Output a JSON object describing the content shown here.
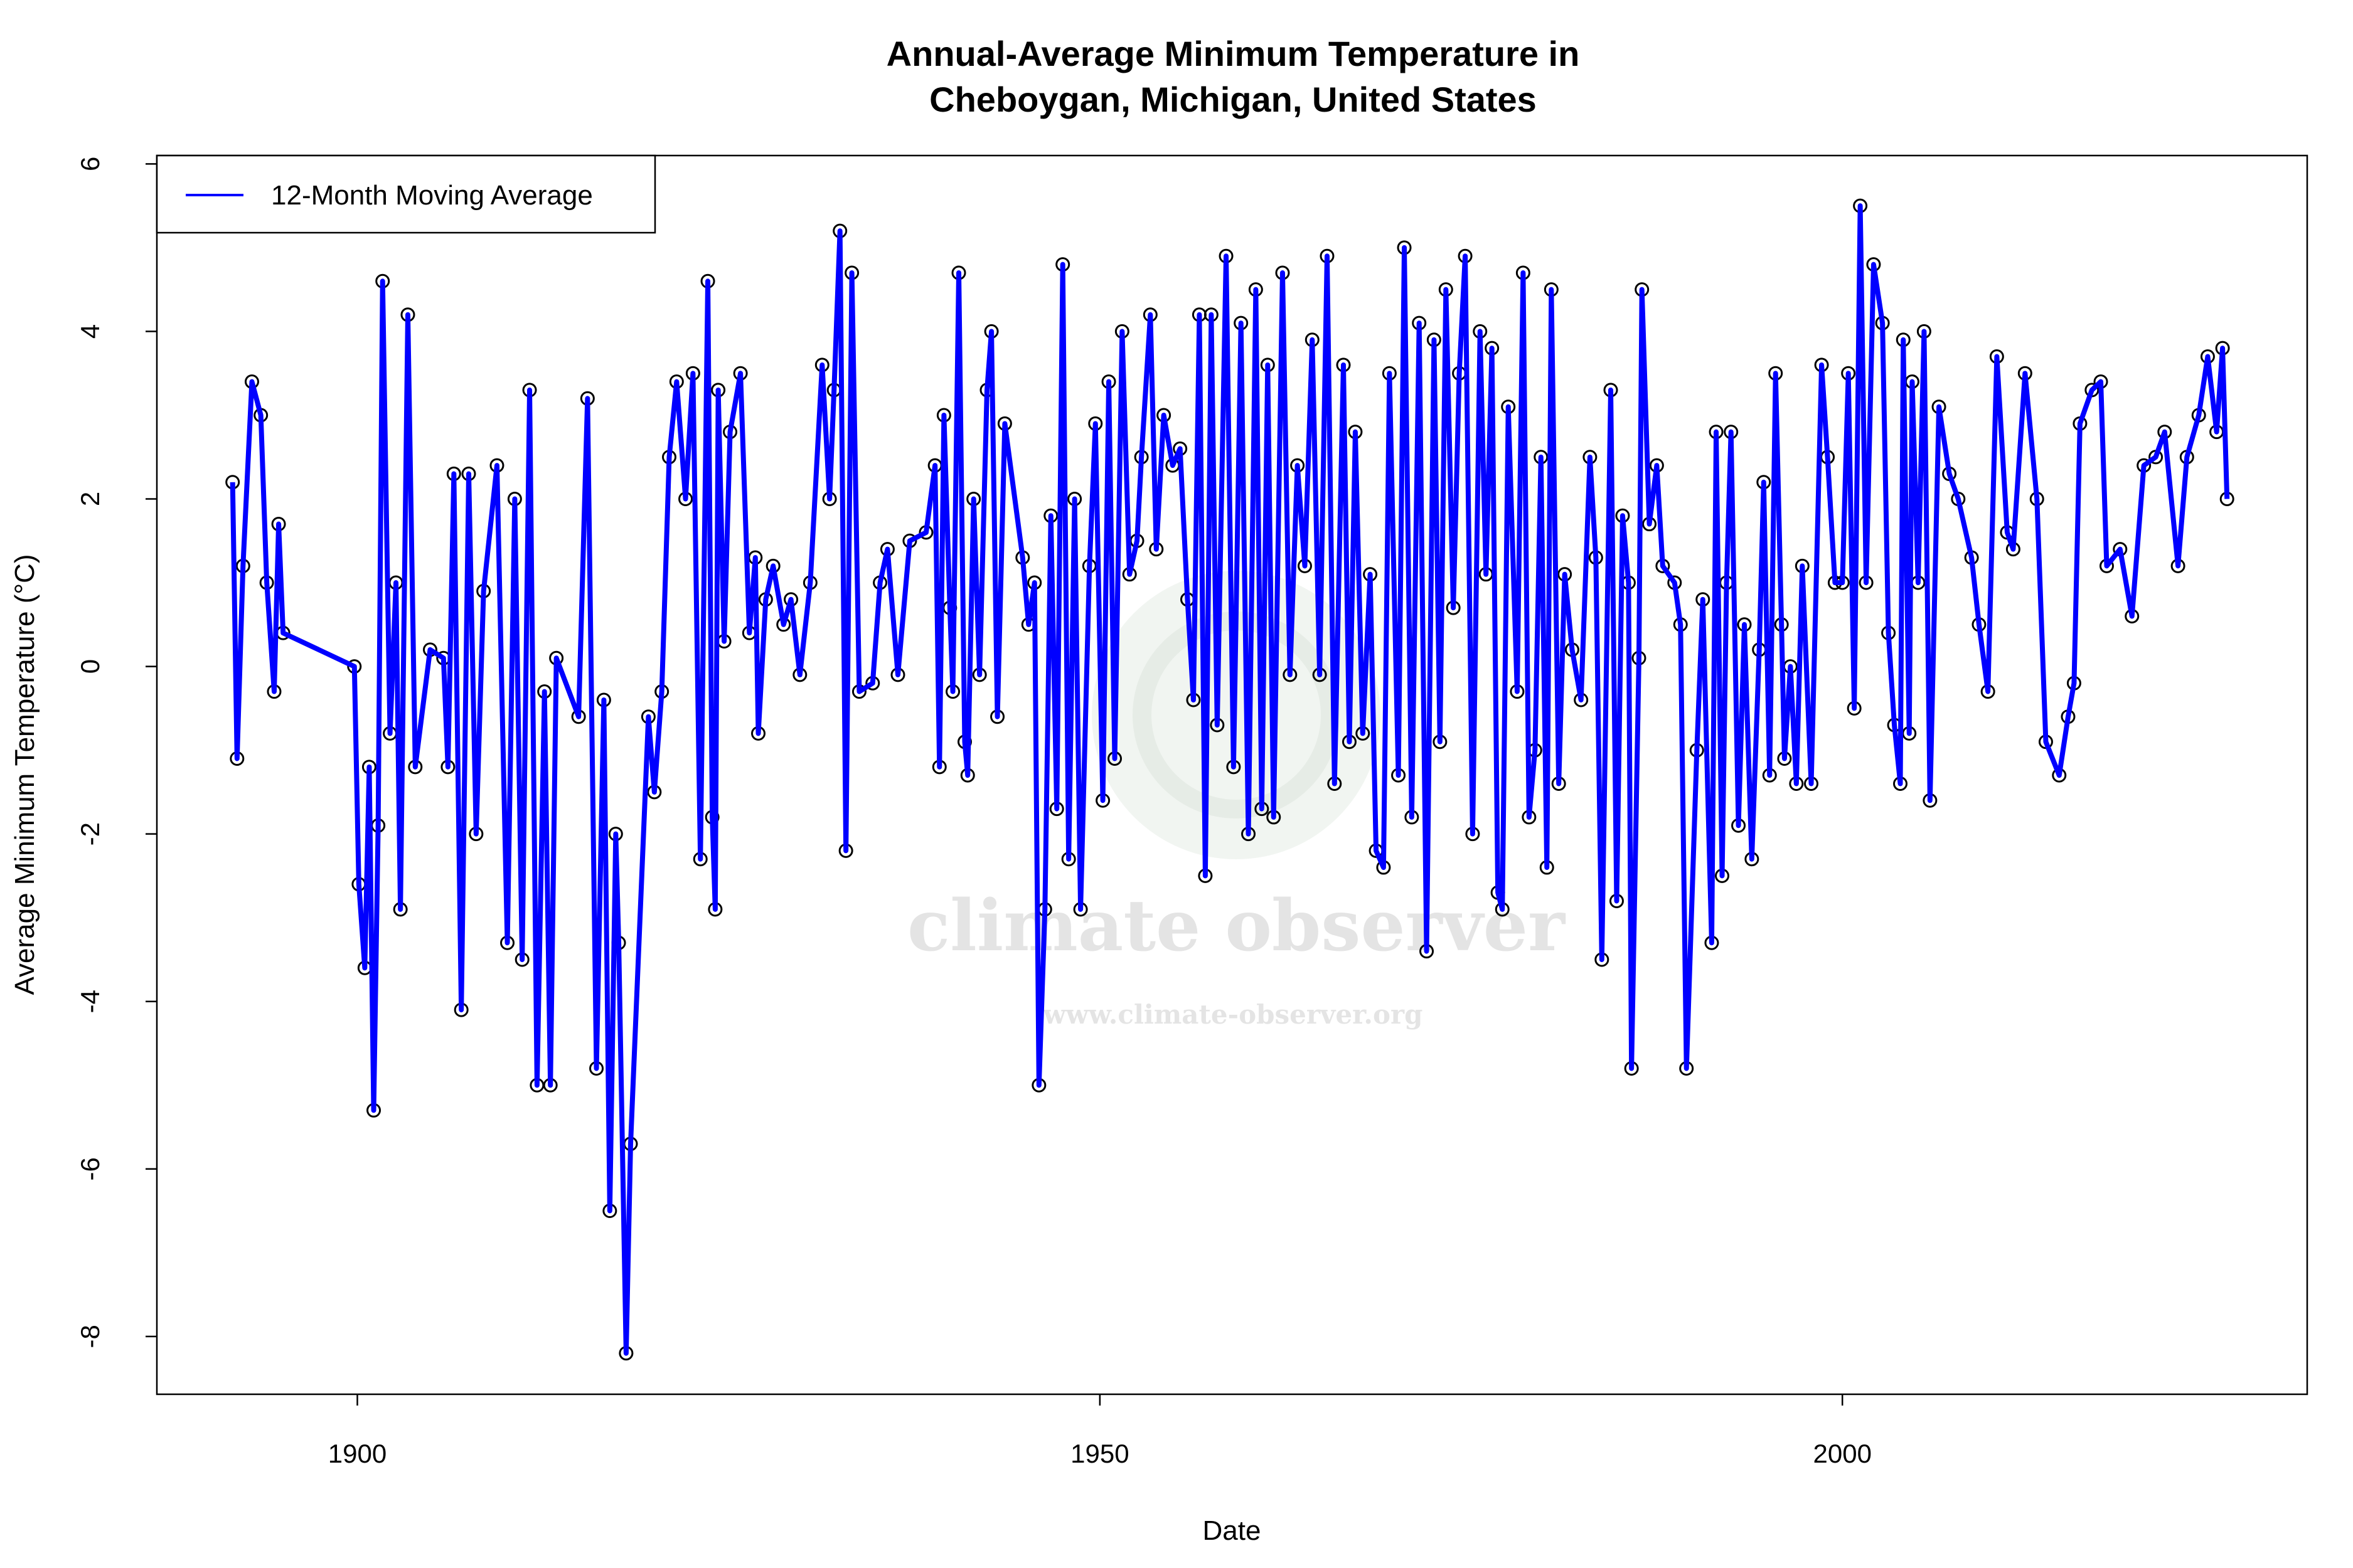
{
  "chart_data": {
    "type": "line",
    "title": "Annual-Average Minimum Temperature in\nCheboygan, Michigan, United States",
    "title_lines": [
      "Annual-Average Minimum Temperature in",
      "Cheboygan, Michigan, United States"
    ],
    "xlabel": "Date",
    "ylabel": "Average Minimum Temperature (°C)",
    "xlim": [
      1886.5,
      2031.3
    ],
    "ylim": [
      -8.69,
      6.1
    ],
    "x_ticks": [
      1900,
      1950,
      2000
    ],
    "x_tick_labels": [
      "1900",
      "1950",
      "2000"
    ],
    "y_ticks": [
      -8,
      -6,
      -4,
      -2,
      0,
      2,
      4,
      6
    ],
    "y_tick_labels": [
      "-8",
      "-6",
      "-4",
      "-2",
      "0",
      "2",
      "4",
      "6"
    ],
    "grid": false,
    "legend": {
      "position": "top-left",
      "entries": [
        "12-Month Moving Average"
      ]
    },
    "markers": "open circles",
    "series": [
      {
        "name": "12-Month Moving Average",
        "color": "#0000ff",
        "x": [
          1891.6,
          1891.9,
          1892.3,
          1892.9,
          1893.5,
          1893.9,
          1894.4,
          1894.7,
          1895.0,
          1899.8,
          1900.1,
          1900.5,
          1900.8,
          1901.1,
          1901.4,
          1901.7,
          1902.2,
          1902.6,
          1902.9,
          1903.4,
          1903.9,
          1904.9,
          1905.8,
          1906.1,
          1906.5,
          1907.0,
          1907.5,
          1908.0,
          1908.5,
          1909.4,
          1910.1,
          1910.6,
          1911.1,
          1911.6,
          1912.1,
          1912.6,
          1913.0,
          1913.4,
          1914.9,
          1915.5,
          1916.1,
          1916.6,
          1917.0,
          1917.4,
          1917.6,
          1918.1,
          1918.4,
          1919.6,
          1920.0,
          1920.5,
          1921.0,
          1921.5,
          1922.1,
          1922.6,
          1923.1,
          1923.6,
          1923.9,
          1924.1,
          1924.3,
          1924.7,
          1925.1,
          1925.8,
          1926.4,
          1926.8,
          1927.0,
          1927.5,
          1928.0,
          1928.7,
          1929.2,
          1929.8,
          1930.5,
          1931.3,
          1931.8,
          1932.1,
          1932.5,
          1932.9,
          1933.3,
          1933.8,
          1934.7,
          1935.2,
          1935.7,
          1936.4,
          1937.2,
          1938.3,
          1938.9,
          1939.2,
          1939.5,
          1939.9,
          1940.1,
          1940.5,
          1940.9,
          1941.1,
          1941.5,
          1941.9,
          1942.4,
          1942.7,
          1943.1,
          1943.6,
          1944.8,
          1945.2,
          1945.6,
          1945.9,
          1946.3,
          1946.7,
          1947.1,
          1947.5,
          1947.9,
          1948.3,
          1948.7,
          1949.3,
          1949.7,
          1950.2,
          1950.6,
          1951.0,
          1951.5,
          1952.0,
          1952.5,
          1952.8,
          1953.4,
          1953.8,
          1954.3,
          1954.9,
          1955.4,
          1955.9,
          1956.3,
          1956.7,
          1957.1,
          1957.5,
          1957.9,
          1958.5,
          1959.0,
          1959.5,
          1960.0,
          1960.5,
          1960.9,
          1961.3,
          1961.7,
          1962.3,
          1962.8,
          1963.3,
          1963.8,
          1964.3,
          1964.8,
          1965.3,
          1965.8,
          1966.4,
          1966.8,
          1967.2,
          1967.7,
          1968.2,
          1968.6,
          1969.1,
          1969.5,
          1970.1,
          1970.5,
          1971.0,
          1971.5,
          1972.0,
          1972.5,
          1972.9,
          1973.3,
          1973.8,
          1974.2,
          1974.6,
          1975.1,
          1975.6,
          1976.0,
          1976.4,
          1976.8,
          1977.1,
          1977.5,
          1978.1,
          1978.5,
          1978.9,
          1979.3,
          1979.7,
          1980.1,
          1980.4,
          1980.9,
          1981.3,
          1981.8,
          1982.4,
          1983.0,
          1983.4,
          1983.8,
          1984.4,
          1984.8,
          1985.2,
          1985.6,
          1985.8,
          1986.3,
          1986.5,
          1987.0,
          1987.5,
          1987.9,
          1988.7,
          1989.1,
          1989.5,
          1990.2,
          1990.6,
          1991.2,
          1991.5,
          1991.9,
          1992.2,
          1992.5,
          1993.0,
          1993.4,
          1993.9,
          1994.4,
          1994.7,
          1995.1,
          1995.5,
          1995.9,
          1996.1,
          1996.5,
          1996.9,
          1997.3,
          1997.9,
          1998.6,
          1999.0,
          1999.5,
          2000.0,
          2000.4,
          2000.8,
          2001.2,
          2001.6,
          2002.1,
          2002.7,
          2003.1,
          2003.5,
          2003.9,
          2004.1,
          2004.5,
          2004.7,
          2005.1,
          2005.5,
          2005.9,
          2006.5,
          2007.2,
          2007.8,
          2008.7,
          2009.2,
          2009.8,
          2010.4,
          2011.1,
          2011.5,
          2012.3,
          2013.1,
          2013.7,
          2014.6,
          2015.2,
          2015.6,
          2016.0,
          2016.8,
          2017.4,
          2017.8,
          2018.7,
          2019.5,
          2020.3,
          2021.1,
          2021.7,
          2022.6,
          2023.2,
          2024.0,
          2024.6,
          2025.2,
          2025.6,
          2025.9
        ],
        "y": [
          2.2,
          -1.1,
          1.2,
          3.4,
          3.0,
          1.0,
          -0.3,
          1.7,
          0.4,
          0.0,
          -2.6,
          -3.6,
          -1.2,
          -5.3,
          -1.9,
          4.6,
          -0.8,
          1.0,
          -2.9,
          4.2,
          -1.2,
          0.2,
          0.1,
          -1.2,
          2.3,
          -4.1,
          2.3,
          -2.0,
          0.9,
          2.4,
          -3.3,
          2.0,
          -3.5,
          3.3,
          -5.0,
          -0.3,
          -5.0,
          0.1,
          -0.6,
          3.2,
          -4.8,
          -0.4,
          -6.5,
          -2.0,
          -3.3,
          -8.2,
          -5.7,
          -0.6,
          -1.5,
          -0.3,
          2.5,
          3.4,
          2.0,
          3.5,
          -2.3,
          4.6,
          -1.8,
          -2.9,
          3.3,
          0.3,
          2.8,
          3.5,
          0.4,
          1.3,
          -0.8,
          0.8,
          1.2,
          0.5,
          0.8,
          -0.1,
          1.0,
          3.6,
          2.0,
          3.3,
          5.2,
          -2.2,
          4.7,
          -0.3,
          -0.2,
          1.0,
          1.4,
          -0.1,
          1.5,
          1.6,
          2.4,
          -1.2,
          3.0,
          0.7,
          -0.3,
          4.7,
          -0.9,
          -1.3,
          2.0,
          -0.1,
          3.3,
          4.0,
          -0.6,
          2.9,
          1.3,
          0.5,
          1.0,
          -5.0,
          -2.9,
          1.8,
          -1.7,
          4.8,
          -2.3,
          2.0,
          -2.9,
          1.2,
          2.9,
          -1.6,
          3.4,
          -1.1,
          4.0,
          1.1,
          1.5,
          2.5,
          4.2,
          1.4,
          3.0,
          2.4,
          2.6,
          0.8,
          -0.4,
          4.2,
          -2.5,
          4.2,
          -0.7,
          4.9,
          -1.2,
          4.1,
          -2.0,
          4.5,
          -1.7,
          3.6,
          -1.8,
          4.7,
          -0.1,
          2.4,
          1.2,
          3.9,
          -0.1,
          4.9,
          -1.4,
          3.6,
          -0.9,
          2.8,
          -0.8,
          1.1,
          -2.2,
          -2.4,
          3.5,
          -1.3,
          5.0,
          -1.8,
          4.1,
          -3.4,
          3.9,
          -0.9,
          4.5,
          0.7,
          3.5,
          4.9,
          -2.0,
          4.0,
          1.1,
          3.8,
          -2.7,
          -2.9,
          3.1,
          -0.3,
          4.7,
          -1.8,
          -1.0,
          2.5,
          -2.4,
          4.5,
          -1.4,
          1.1,
          0.2,
          -0.4,
          2.5,
          1.3,
          -3.5,
          3.3,
          -2.8,
          1.8,
          1.0,
          -4.8,
          0.1,
          4.5,
          1.7,
          2.4,
          1.2,
          1.0,
          0.5,
          -4.8,
          -1.0,
          0.8,
          -3.3,
          2.8,
          -2.5,
          1.0,
          2.8,
          -1.9,
          0.5,
          -2.3,
          0.2,
          2.2,
          -1.3,
          3.5,
          0.5,
          -1.1,
          0.0,
          -1.4,
          1.2,
          -1.4,
          3.6,
          2.5,
          1.0,
          1.0,
          3.5,
          -0.5,
          5.5,
          1.0,
          4.8,
          4.1,
          0.4,
          -0.7,
          -1.4,
          3.9,
          -0.8,
          3.4,
          1.0,
          4.0,
          -1.6,
          3.1,
          2.3,
          2.0,
          1.3,
          0.5,
          -0.3,
          3.7,
          1.6,
          1.4,
          3.5,
          2.0,
          -0.9,
          -1.3,
          -0.6,
          -0.2,
          2.9,
          3.3,
          3.4,
          1.2,
          1.4,
          0.6,
          2.4,
          2.5,
          2.8,
          1.2,
          2.5,
          3.0,
          3.7,
          2.8,
          3.8,
          2.0
        ]
      }
    ]
  },
  "watermark": {
    "name": "climate observer",
    "url": "www.climate-observer.org"
  }
}
